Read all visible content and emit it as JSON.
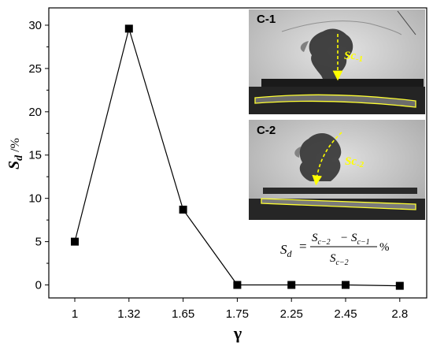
{
  "chart_data": {
    "type": "line",
    "categories": [
      "1",
      "1.32",
      "1.65",
      "1.75",
      "2.25",
      "2.45",
      "2.8"
    ],
    "values": [
      5.0,
      29.6,
      8.7,
      0.0,
      0.0,
      0.0,
      -0.1
    ],
    "xlabel": "γ",
    "ylabel": {
      "main": "S",
      "sub": "d",
      "unit": " /%"
    },
    "ylim": [
      -1.5,
      32
    ],
    "yticks": [
      0,
      5,
      10,
      15,
      20,
      25,
      30
    ],
    "grid": false,
    "marker": "square",
    "line_color": "#000000"
  },
  "formula": {
    "lhs_main": "S",
    "lhs_sub": "d",
    "equals": "=",
    "num_a": "S",
    "num_a_sub": "c−2",
    "minus": "−",
    "num_b": "S",
    "num_b_sub": "c−1",
    "den": "S",
    "den_sub": "c−2",
    "unit": "%"
  },
  "insets": [
    {
      "label": "C-1",
      "path_main": "Sc",
      "path_sub": "-1"
    },
    {
      "label": "C-2",
      "path_main": "Sc",
      "path_sub": "-2"
    }
  ],
  "colors": {
    "path": "#ffff00",
    "outline": "#ffff33",
    "axis": "#000000"
  }
}
